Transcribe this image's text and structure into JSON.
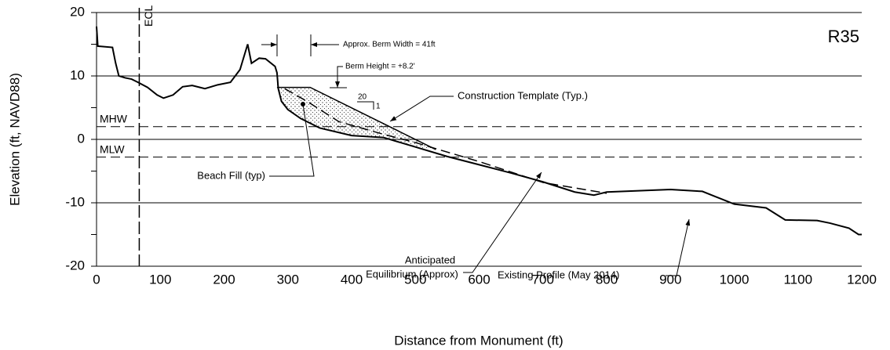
{
  "chart_data": {
    "type": "line",
    "xlabel": "Distance from Monument (ft)",
    "ylabel": "Elevation (ft, NAVD88)",
    "xlim": [
      0,
      1200
    ],
    "xticks": [
      0,
      100,
      200,
      300,
      400,
      500,
      600,
      700,
      800,
      900,
      1000,
      1100,
      1200
    ],
    "ylim": [
      -20,
      20
    ],
    "yticks": [
      -20,
      -10,
      0,
      10,
      20
    ],
    "minor_yticks": [
      -15,
      -5,
      5,
      15
    ],
    "grid": true,
    "series": [
      {
        "color": "#000000",
        "style": "solid",
        "x": [
          0,
          2,
          25,
          30,
          35,
          45,
          55,
          65,
          80,
          95,
          105,
          120,
          135,
          150,
          170,
          190,
          210,
          225,
          237,
          243,
          255,
          265,
          280,
          283,
          285,
          290,
          300,
          320,
          350,
          400,
          450,
          500,
          550,
          600,
          650,
          700,
          750,
          780,
          800,
          850,
          900,
          950,
          970,
          1000,
          1050,
          1080,
          1130,
          1150,
          1180,
          1195,
          1200
        ],
        "values": [
          17.8,
          14.7,
          14.5,
          12,
          10,
          9.7,
          9.5,
          9,
          8.2,
          7,
          6.5,
          7,
          8.3,
          8.5,
          8,
          8.6,
          9,
          11,
          15,
          12,
          12.8,
          12.7,
          11.5,
          10.5,
          8,
          6,
          4.7,
          3.3,
          1.8,
          0.6,
          0.3,
          -1.2,
          -2.7,
          -4,
          -5.3,
          -6.7,
          -8.3,
          -8.8,
          -8.3,
          -8.1,
          -7.9,
          -8.2,
          -9,
          -10.2,
          -10.8,
          -12.7,
          -12.8,
          -13.2,
          -14,
          -15,
          -15
        ]
      },
      {
        "color": "#000000",
        "style": "solid",
        "x": [
          283,
          335,
          532
        ],
        "values": [
          8.2,
          8.2,
          -1.6
        ]
      },
      {
        "color": "#000000",
        "style": "dashed",
        "x": [
          295,
          330,
          380,
          450,
          500,
          600,
          700,
          800
        ],
        "values": [
          8,
          6,
          2.8,
          0.8,
          -0.5,
          -3.5,
          -6.8,
          -8.5
        ]
      }
    ],
    "reference_lines": [
      {
        "label": "MHW",
        "value": 2
      },
      {
        "label": "MLW",
        "value": -2.8
      }
    ],
    "ecl": {
      "label": "ECL",
      "x": 67
    },
    "station": "R35",
    "annotations": [
      "Approx. Berm Width = 41ft",
      "Berm Height = +8.2'",
      "20",
      "1",
      "Construction Template (Typ.)",
      "Beach Fill (typ)",
      "Anticipated",
      "Equilibrium (Approx)",
      "Existing Profile (May 2014)"
    ]
  }
}
